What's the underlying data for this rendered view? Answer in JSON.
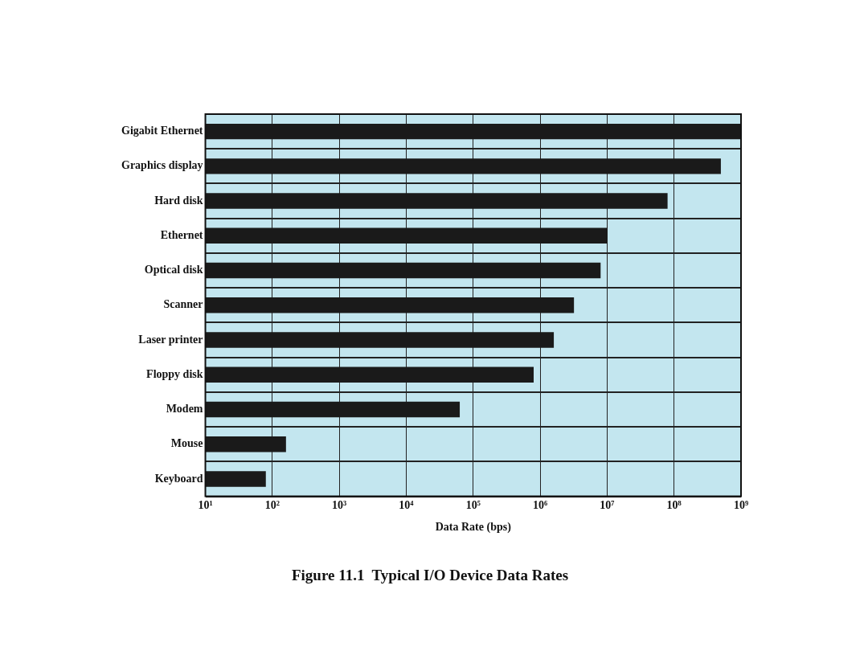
{
  "chart_data": {
    "type": "bar",
    "orientation": "horizontal",
    "title": "Figure 11.1  Typical I/O Device Data Rates",
    "xlabel": "Data Rate (bps)",
    "categories": [
      "Gigabit Ethernet",
      "Graphics display",
      "Hard disk",
      "Ethernet",
      "Optical disk",
      "Scanner",
      "Laser printer",
      "Floppy disk",
      "Modem",
      "Mouse",
      "Keyboard"
    ],
    "values": [
      1000000000,
      500000000,
      80000000,
      10000000,
      8000000,
      3200000,
      1600000,
      800000,
      63000,
      160,
      80
    ],
    "color": "#1a1a1a",
    "log": "x",
    "xlim": [
      10,
      1000000000
    ],
    "xticks": [
      {
        "value": 10,
        "label": "10¹"
      },
      {
        "value": 100,
        "label": "10²"
      },
      {
        "value": 1000,
        "label": "10³"
      },
      {
        "value": 10000,
        "label": "10⁴"
      },
      {
        "value": 100000,
        "label": "10⁵"
      },
      {
        "value": 1000000,
        "label": "10⁶"
      },
      {
        "value": 10000000,
        "label": "10⁷"
      },
      {
        "value": 100000000,
        "label": "10⁸"
      },
      {
        "value": 1000000000,
        "label": "10⁹"
      }
    ],
    "grid": true,
    "legend": false
  }
}
